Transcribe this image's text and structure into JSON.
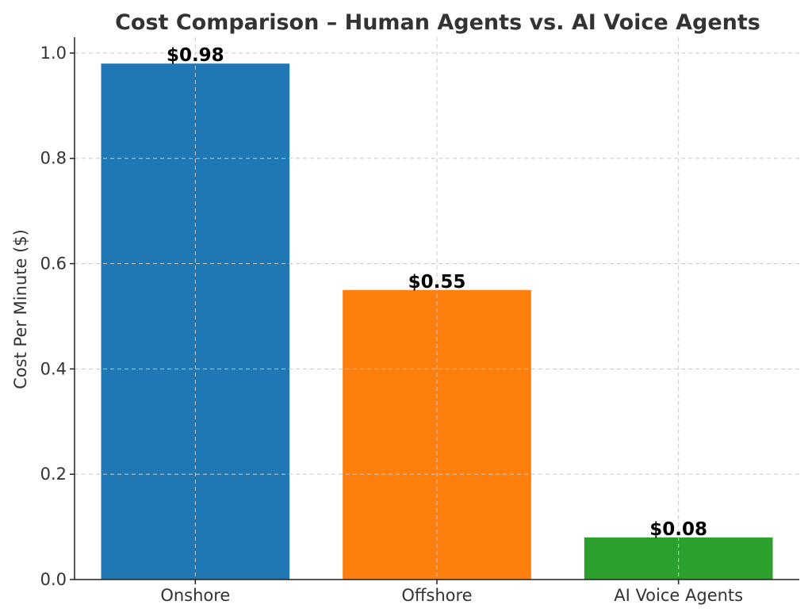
{
  "chart_data": {
    "type": "bar",
    "title": "Cost Comparison – Human Agents vs. AI Voice Agents",
    "xlabel": "",
    "ylabel": "Cost Per Minute ($)",
    "categories": [
      "Onshore",
      "Offshore",
      "AI Voice Agents"
    ],
    "values": [
      0.98,
      0.55,
      0.08
    ],
    "data_labels": [
      "$0.98",
      "$0.55",
      "$0.08"
    ],
    "colors": [
      "#1f77b4",
      "#ff7f0e",
      "#2ca02c"
    ],
    "ylim": [
      0,
      1.03
    ],
    "yticks": [
      0.0,
      0.2,
      0.4,
      0.6,
      0.8,
      1.0
    ],
    "ytick_labels": [
      "0.0",
      "0.2",
      "0.4",
      "0.6",
      "0.8",
      "1.0"
    ],
    "grid": true,
    "legend": "none"
  }
}
